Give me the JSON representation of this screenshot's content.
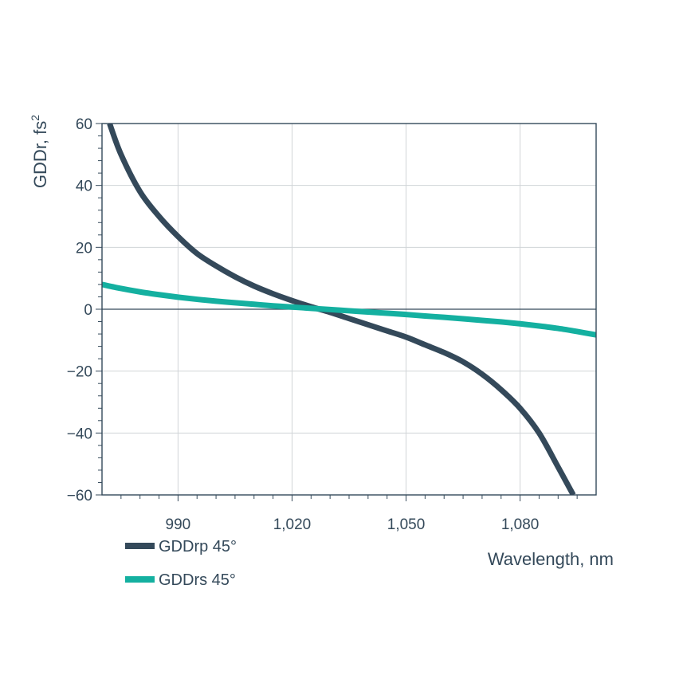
{
  "chart_data": {
    "type": "line",
    "title": "",
    "xlabel": "Wavelength, nm",
    "ylabel": "GDDr, fs",
    "ylabel_superscript": "2",
    "xlim": [
      970,
      1100
    ],
    "ylim": [
      -60,
      60
    ],
    "x_ticks": [
      {
        "value": 990,
        "label": "990"
      },
      {
        "value": 1020,
        "label": "1,020"
      },
      {
        "value": 1050,
        "label": "1,050"
      },
      {
        "value": 1080,
        "label": "1,080"
      }
    ],
    "y_ticks": [
      {
        "value": 60,
        "label": "60"
      },
      {
        "value": 40,
        "label": "40"
      },
      {
        "value": 20,
        "label": "20"
      },
      {
        "value": 0,
        "label": "0"
      },
      {
        "value": -20,
        "label": "−20"
      },
      {
        "value": -40,
        "label": "−40"
      },
      {
        "value": -60,
        "label": "−60"
      }
    ],
    "grid": true,
    "legend_position": "bottom-left",
    "series": [
      {
        "name": "GDDrp 45°",
        "color": "#34495a",
        "x": [
          972,
          975,
          980,
          985,
          990,
          995,
          1000,
          1005,
          1010,
          1015,
          1020,
          1025,
          1030,
          1035,
          1040,
          1045,
          1050,
          1055,
          1060,
          1065,
          1070,
          1075,
          1080,
          1085,
          1090,
          1094
        ],
        "y": [
          60,
          50,
          38,
          30,
          23.5,
          18,
          14,
          10.5,
          7.5,
          5,
          2.8,
          0.8,
          -1,
          -3,
          -5,
          -7,
          -9,
          -11.5,
          -14,
          -17,
          -21,
          -26,
          -32,
          -40,
          -51,
          -60
        ]
      },
      {
        "name": "GDDrs 45°",
        "color": "#14b0a0",
        "x": [
          970,
          975,
          980,
          985,
          990,
          995,
          1000,
          1005,
          1010,
          1015,
          1020,
          1025,
          1030,
          1035,
          1040,
          1045,
          1050,
          1055,
          1060,
          1065,
          1070,
          1075,
          1080,
          1085,
          1090,
          1095,
          1100
        ],
        "y": [
          8,
          6.7,
          5.6,
          4.7,
          3.9,
          3.2,
          2.6,
          2.1,
          1.6,
          1.1,
          0.7,
          0.3,
          -0.1,
          -0.5,
          -0.9,
          -1.3,
          -1.7,
          -2.2,
          -2.6,
          -3.1,
          -3.6,
          -4.1,
          -4.7,
          -5.4,
          -6.2,
          -7.2,
          -8.3
        ]
      }
    ]
  }
}
